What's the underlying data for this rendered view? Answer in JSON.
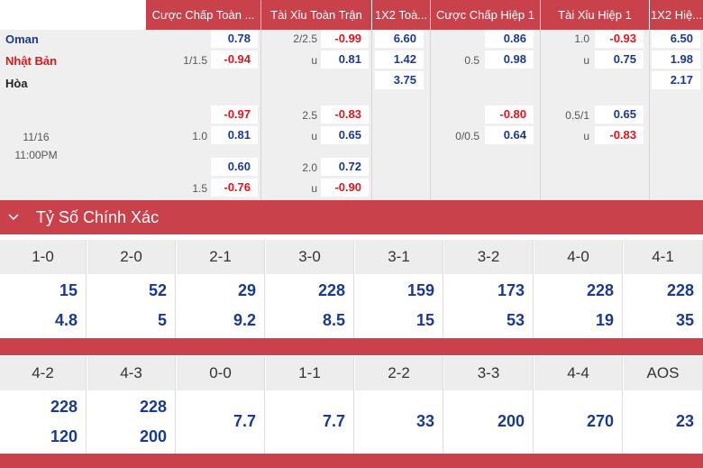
{
  "headers": [
    "Cược Chấp Toàn ...",
    "Tài Xỉu Toàn Trận",
    "1X2 Toà...",
    "Cược Chấp Hiệp 1",
    "Tài Xỉu Hiệp 1",
    "1X2 Hiệ..."
  ],
  "teams": {
    "home": "Oman",
    "away": "Nhật Bản",
    "draw": "Hòa"
  },
  "kickoff": {
    "date": "11/16",
    "time": "11:00PM"
  },
  "markets": {
    "main": {
      "ah_line": "1/1.5",
      "ah_home": "0.78",
      "ah_away": "-0.94",
      "ou_line": "2/2.5",
      "ou_u": "u",
      "ou_over": "-0.99",
      "ou_under": "0.81",
      "x12_home": "6.60",
      "x12_away": "1.42",
      "x12_draw": "3.75",
      "h1_ah_line": "0.5",
      "h1_ah_home": "0.86",
      "h1_ah_away": "0.98",
      "h1_ou_line": "1.0",
      "h1_ou_u": "u",
      "h1_ou_over": "-0.93",
      "h1_ou_under": "0.75",
      "h1_x12_home": "6.50",
      "h1_x12_away": "1.98",
      "h1_x12_draw": "2.17"
    },
    "alt1": {
      "ah_line": "1.0",
      "ah_home": "-0.97",
      "ah_away": "0.81",
      "ou_line": "2.5",
      "ou_u": "u",
      "ou_over": "-0.83",
      "ou_under": "0.65",
      "h1_ah_line": "0/0.5",
      "h1_ah_home": "-0.80",
      "h1_ah_away": "0.64",
      "h1_ou_line": "0.5/1",
      "h1_ou_u": "u",
      "h1_ou_over": "0.65",
      "h1_ou_under": "-0.83"
    },
    "alt2": {
      "ah_line": "1.5",
      "ah_home": "0.60",
      "ah_away": "-0.76",
      "ou_line": "2.0",
      "ou_u": "u",
      "ou_over": "0.72",
      "ou_under": "-0.90"
    }
  },
  "correct_score": {
    "title": "Tỷ Số Chính Xác",
    "row1": [
      {
        "score": "1-0",
        "home": "15",
        "away": "4.8"
      },
      {
        "score": "2-0",
        "home": "52",
        "away": "5"
      },
      {
        "score": "2-1",
        "home": "29",
        "away": "9.2"
      },
      {
        "score": "3-0",
        "home": "228",
        "away": "8.5"
      },
      {
        "score": "3-1",
        "home": "159",
        "away": "15"
      },
      {
        "score": "3-2",
        "home": "173",
        "away": "53"
      },
      {
        "score": "4-0",
        "home": "228",
        "away": "19"
      },
      {
        "score": "4-1",
        "home": "228",
        "away": "35"
      }
    ],
    "row2": [
      {
        "score": "4-2",
        "home": "228",
        "away": "120"
      },
      {
        "score": "4-3",
        "home": "228",
        "away": "200"
      },
      {
        "score": "0-0",
        "single": "7.7"
      },
      {
        "score": "1-1",
        "single": "7.7"
      },
      {
        "score": "2-2",
        "single": "33"
      },
      {
        "score": "3-3",
        "single": "200"
      },
      {
        "score": "4-4",
        "single": "270"
      },
      {
        "score": "AOS",
        "single": "23"
      }
    ]
  },
  "colors": {
    "accent": "#c9414a",
    "positive": "#1a3a8f",
    "negative": "#e0161c"
  },
  "icons": {
    "collapse": "chevron-down-icon"
  }
}
